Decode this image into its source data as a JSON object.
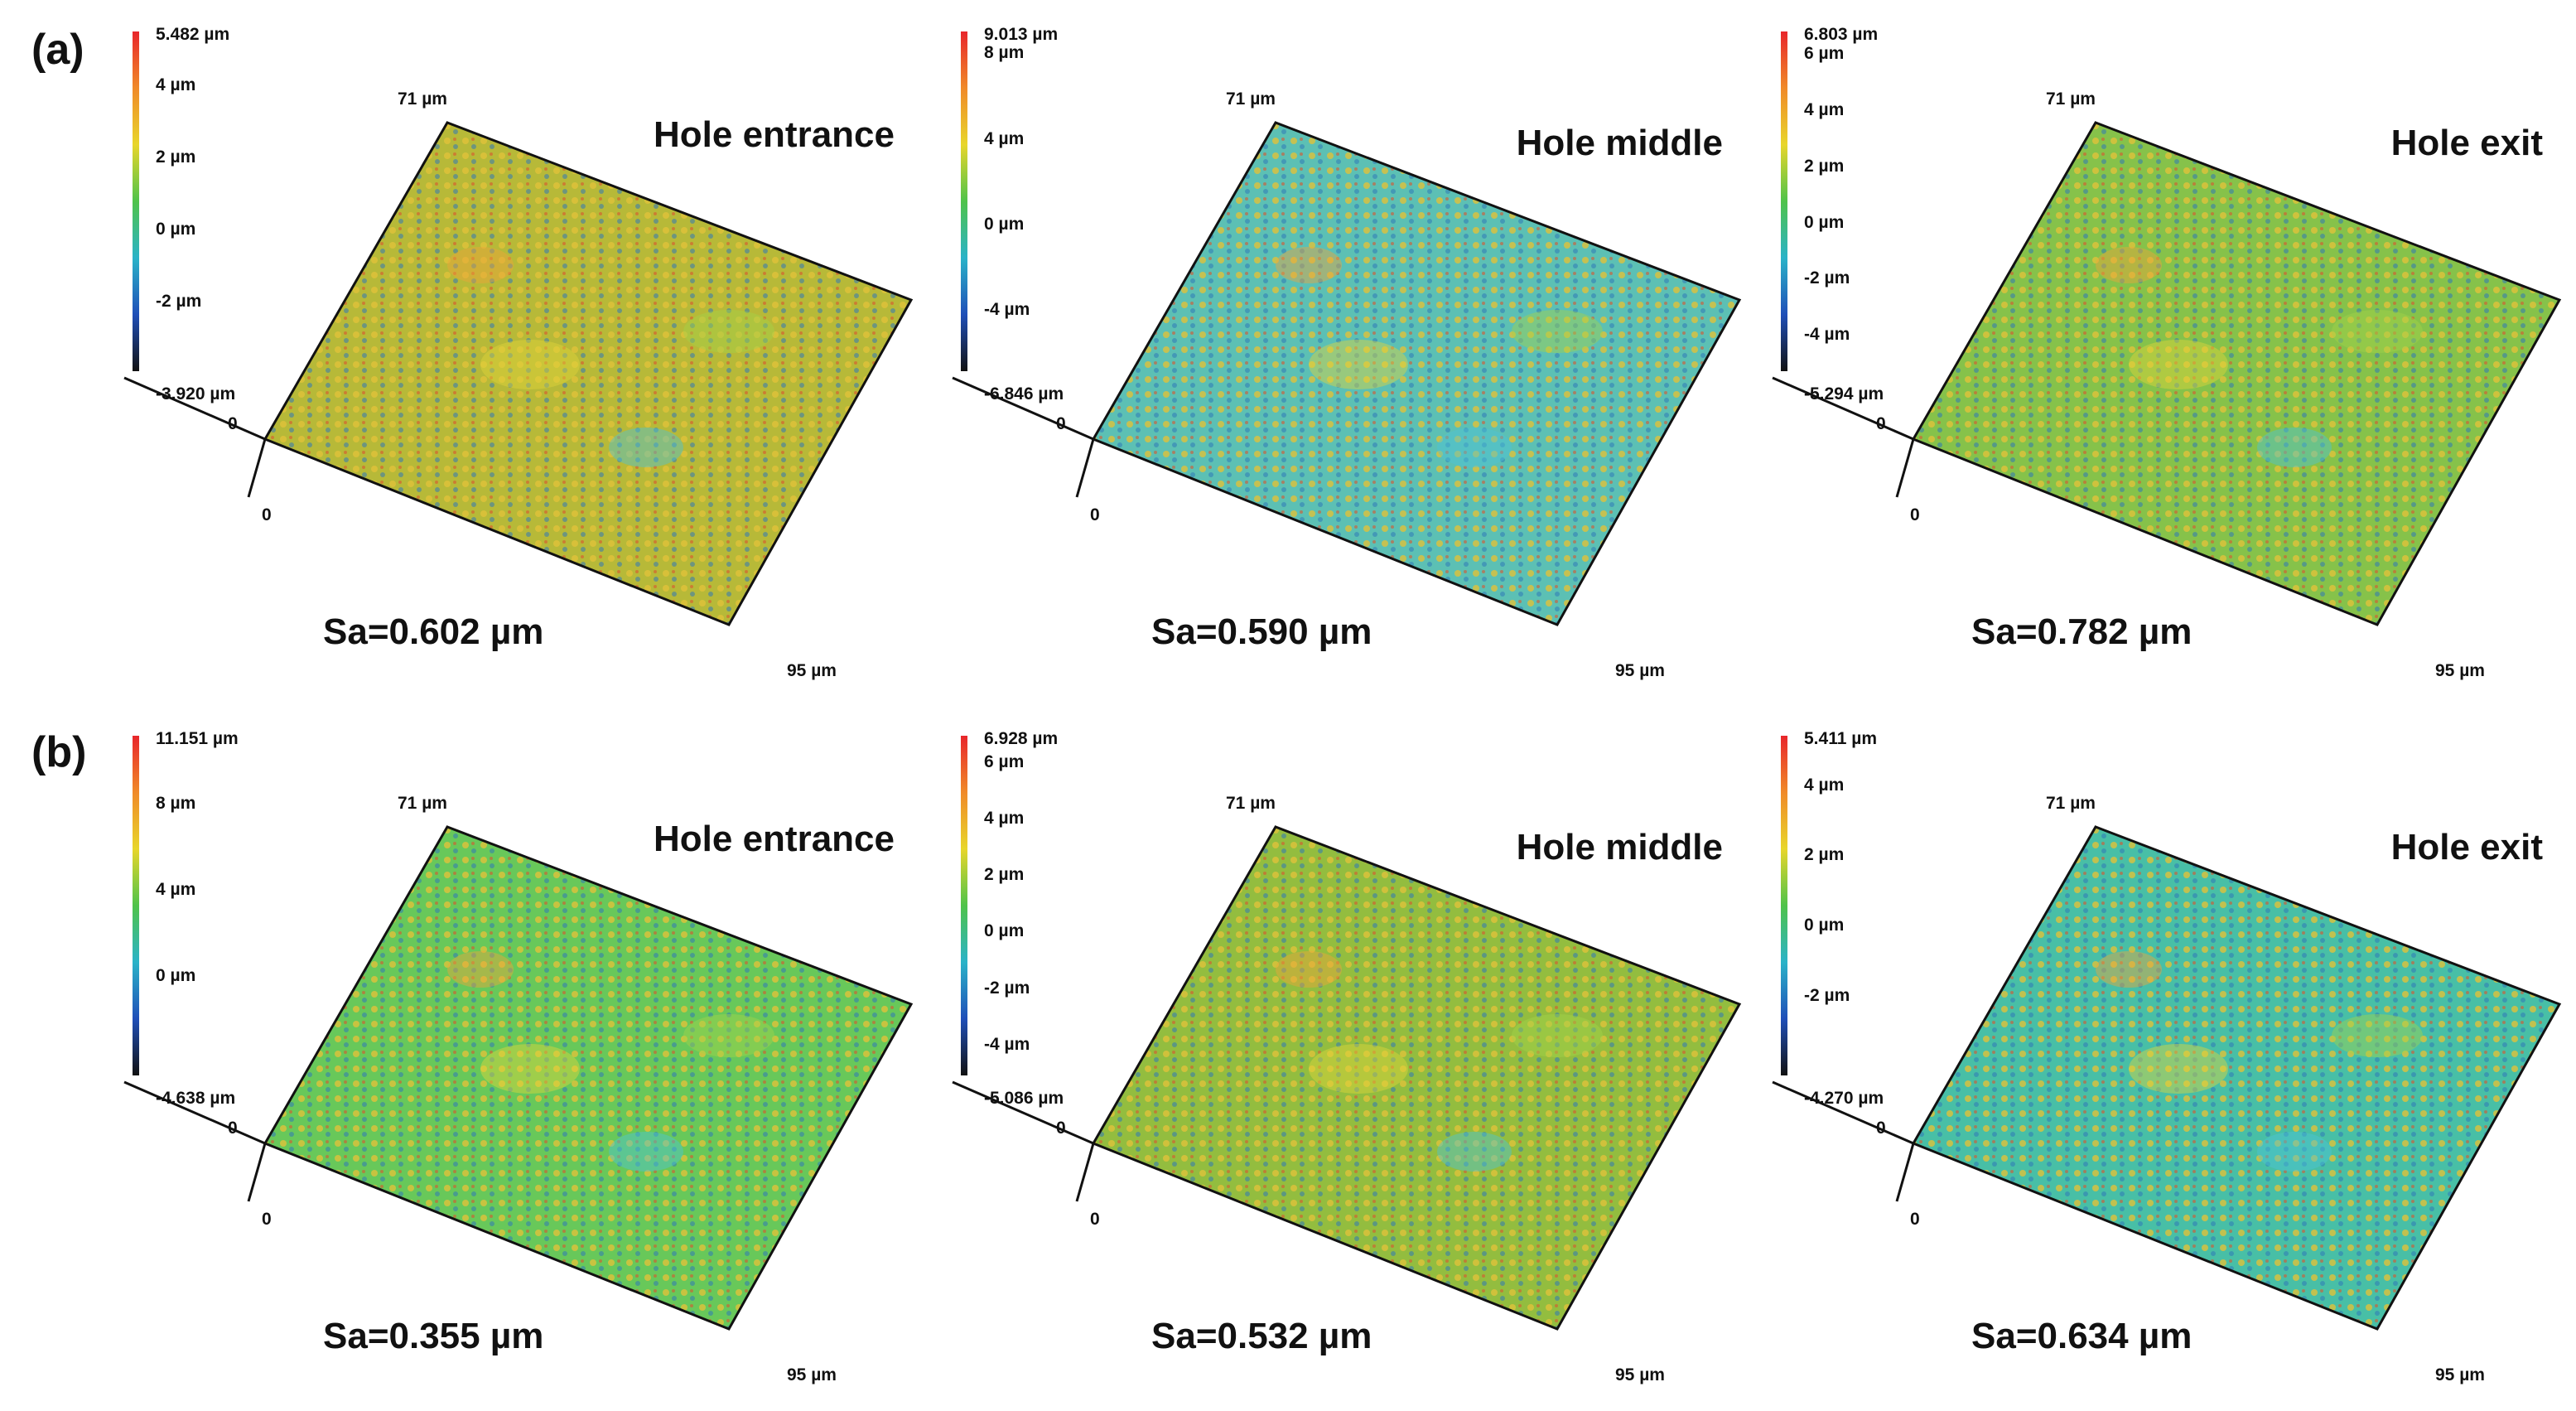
{
  "figure": {
    "rows": [
      {
        "label": "(a)",
        "panels": [
          {
            "title": "Hole entrance",
            "sa": "Sa=0.602 µm",
            "max": "5.482 µm",
            "min": "-3.920 µm",
            "ticks": [
              {
                "label": "4 µm",
                "v": 4
              },
              {
                "label": "2 µm",
                "v": 2
              },
              {
                "label": "0 µm",
                "v": 0
              },
              {
                "label": "-2 µm",
                "v": -2
              }
            ],
            "axis_y": "71 µm",
            "axis_x": "95 µm",
            "origin_top": "0",
            "origin_bottom": "0",
            "tint": "#b7b938"
          },
          {
            "title": "Hole middle",
            "sa": "Sa=0.590 µm",
            "max": "9.013 µm",
            "min": "-6.846 µm",
            "ticks": [
              {
                "label": "8 µm",
                "v": 8
              },
              {
                "label": "4 µm",
                "v": 4
              },
              {
                "label": "0 µm",
                "v": 0
              },
              {
                "label": "-4 µm",
                "v": -4
              }
            ],
            "axis_y": "71 µm",
            "axis_x": "95 µm",
            "origin_top": "0",
            "origin_bottom": "0",
            "tint": "#5cc0b4"
          },
          {
            "title": "Hole exit",
            "sa": "Sa=0.782 µm",
            "max": "6.803 µm",
            "min": "-5.294 µm",
            "ticks": [
              {
                "label": "6 µm",
                "v": 6
              },
              {
                "label": "4 µm",
                "v": 4
              },
              {
                "label": "2 µm",
                "v": 2
              },
              {
                "label": "0 µm",
                "v": 0
              },
              {
                "label": "-2 µm",
                "v": -2
              },
              {
                "label": "-4 µm",
                "v": -4
              }
            ],
            "axis_y": "71 µm",
            "axis_x": "95 µm",
            "origin_top": "0",
            "origin_bottom": "0",
            "tint": "#86c24a"
          }
        ]
      },
      {
        "label": "(b)",
        "panels": [
          {
            "title": "Hole entrance",
            "sa": "Sa=0.355 µm",
            "max": "11.151 µm",
            "min": "-4.638 µm",
            "ticks": [
              {
                "label": "8 µm",
                "v": 8
              },
              {
                "label": "4 µm",
                "v": 4
              },
              {
                "label": "0 µm",
                "v": 0
              }
            ],
            "axis_y": "71 µm",
            "axis_x": "95 µm",
            "origin_top": "0",
            "origin_bottom": "0",
            "tint": "#68c85a"
          },
          {
            "title": "Hole middle",
            "sa": "Sa=0.532 µm",
            "max": "6.928 µm",
            "min": "-5.086 µm",
            "ticks": [
              {
                "label": "6 µm",
                "v": 6
              },
              {
                "label": "4 µm",
                "v": 4
              },
              {
                "label": "2 µm",
                "v": 2
              },
              {
                "label": "0 µm",
                "v": 0
              },
              {
                "label": "-2 µm",
                "v": -2
              },
              {
                "label": "-4 µm",
                "v": -4
              }
            ],
            "axis_y": "71 µm",
            "axis_x": "95 µm",
            "origin_top": "0",
            "origin_bottom": "0",
            "tint": "#93bd3f"
          },
          {
            "title": "Hole exit",
            "sa": "Sa=0.634 µm",
            "max": "5.411 µm",
            "min": "-4.270 µm",
            "ticks": [
              {
                "label": "4 µm",
                "v": 4
              },
              {
                "label": "2 µm",
                "v": 2
              },
              {
                "label": "0 µm",
                "v": 0
              },
              {
                "label": "-2 µm",
                "v": -2
              }
            ],
            "axis_y": "71 µm",
            "axis_x": "95 µm",
            "origin_top": "0",
            "origin_bottom": "0",
            "tint": "#48bfa6"
          }
        ]
      }
    ]
  },
  "colors": {
    "scale_stops": [
      "#e8262b",
      "#f08a2a",
      "#e8d62b",
      "#4fc34a",
      "#2ab3c8",
      "#1f4fb8",
      "#111111"
    ],
    "frame": "#111111"
  }
}
